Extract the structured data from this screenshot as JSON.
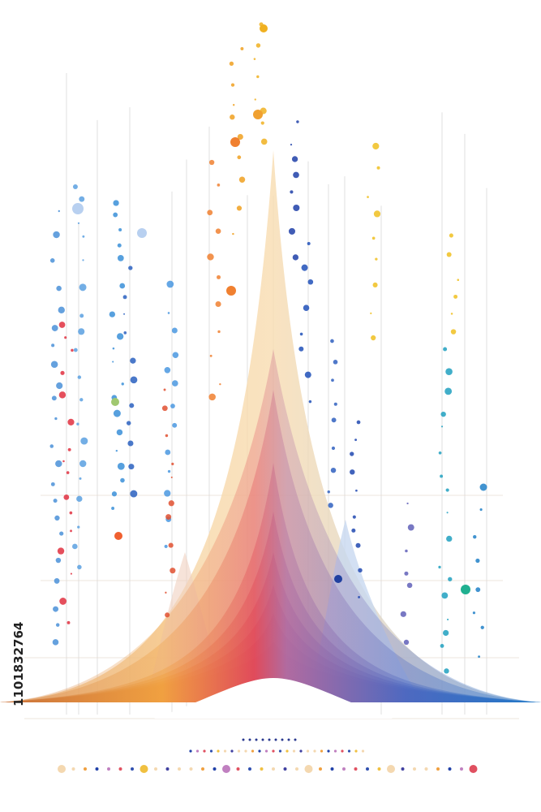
{
  "watermark_id": "1101832764"
}
